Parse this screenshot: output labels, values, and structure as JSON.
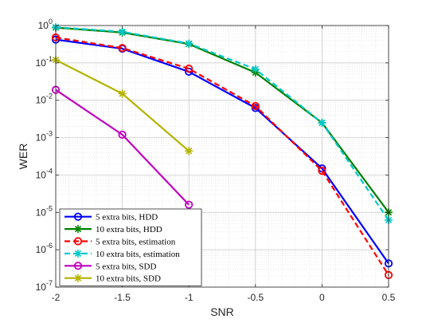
{
  "chart_data": {
    "type": "line",
    "xlabel": "SNR",
    "ylabel": "WER",
    "x_ticks": [
      -2,
      -1.5,
      -1,
      -0.5,
      0,
      0.5
    ],
    "x_tick_labels": [
      "-2",
      "-1.5",
      "-1",
      "-0.5",
      "0",
      "0.5"
    ],
    "xlim": [
      -2,
      0.5
    ],
    "y_scale": "log",
    "ylim": [
      1e-07,
      1
    ],
    "y_ticks": [
      {
        "base": "10",
        "exp": "0"
      },
      {
        "base": "10",
        "exp": "-1"
      },
      {
        "base": "10",
        "exp": "-2"
      },
      {
        "base": "10",
        "exp": "-3"
      },
      {
        "base": "10",
        "exp": "-4"
      },
      {
        "base": "10",
        "exp": "-5"
      },
      {
        "base": "10",
        "exp": "-6"
      },
      {
        "base": "10",
        "exp": "-7"
      }
    ],
    "grid": true,
    "minor_grid": true,
    "legend_position": "bottom-left",
    "series": [
      {
        "name": "5 extra bits, HDD",
        "color": "#0000ff",
        "style": "solid",
        "marker": "circle",
        "x": [
          -2,
          -1.5,
          -1,
          -0.5,
          0,
          0.5
        ],
        "y": [
          0.42,
          0.24,
          0.058,
          0.0062,
          0.00015,
          4.3e-07
        ]
      },
      {
        "name": "10 extra bits, HDD",
        "color": "#008000",
        "style": "solid",
        "marker": "asterisk",
        "x": [
          -2,
          -1.5,
          -1,
          -0.5,
          0,
          0.5
        ],
        "y": [
          0.88,
          0.65,
          0.32,
          0.055,
          0.0025,
          1e-05
        ]
      },
      {
        "name": "5 extra bits, estimation",
        "color": "#ff0000",
        "style": "dashed",
        "marker": "circle",
        "x": [
          -2,
          -1.5,
          -1,
          -0.5,
          0,
          0.5
        ],
        "y": [
          0.48,
          0.25,
          0.07,
          0.007,
          0.00013,
          2.1e-07
        ]
      },
      {
        "name": "10 extra bits, estimation",
        "color": "#00c8c8",
        "style": "dashed",
        "marker": "asterisk",
        "x": [
          -2,
          -1.5,
          -1,
          -0.5,
          0,
          0.5
        ],
        "y": [
          0.9,
          0.68,
          0.33,
          0.068,
          0.0025,
          6.2e-06
        ]
      },
      {
        "name": "5 extra bits, SDD",
        "color": "#bf00bf",
        "style": "solid",
        "marker": "circle",
        "x": [
          -2,
          -1.5,
          -1
        ],
        "y": [
          0.019,
          0.0012,
          1.6e-05
        ]
      },
      {
        "name": "10 extra bits, SDD",
        "color": "#b3b300",
        "style": "solid",
        "marker": "asterisk",
        "x": [
          -2,
          -1.5,
          -1
        ],
        "y": [
          0.12,
          0.015,
          0.00044
        ]
      }
    ]
  }
}
